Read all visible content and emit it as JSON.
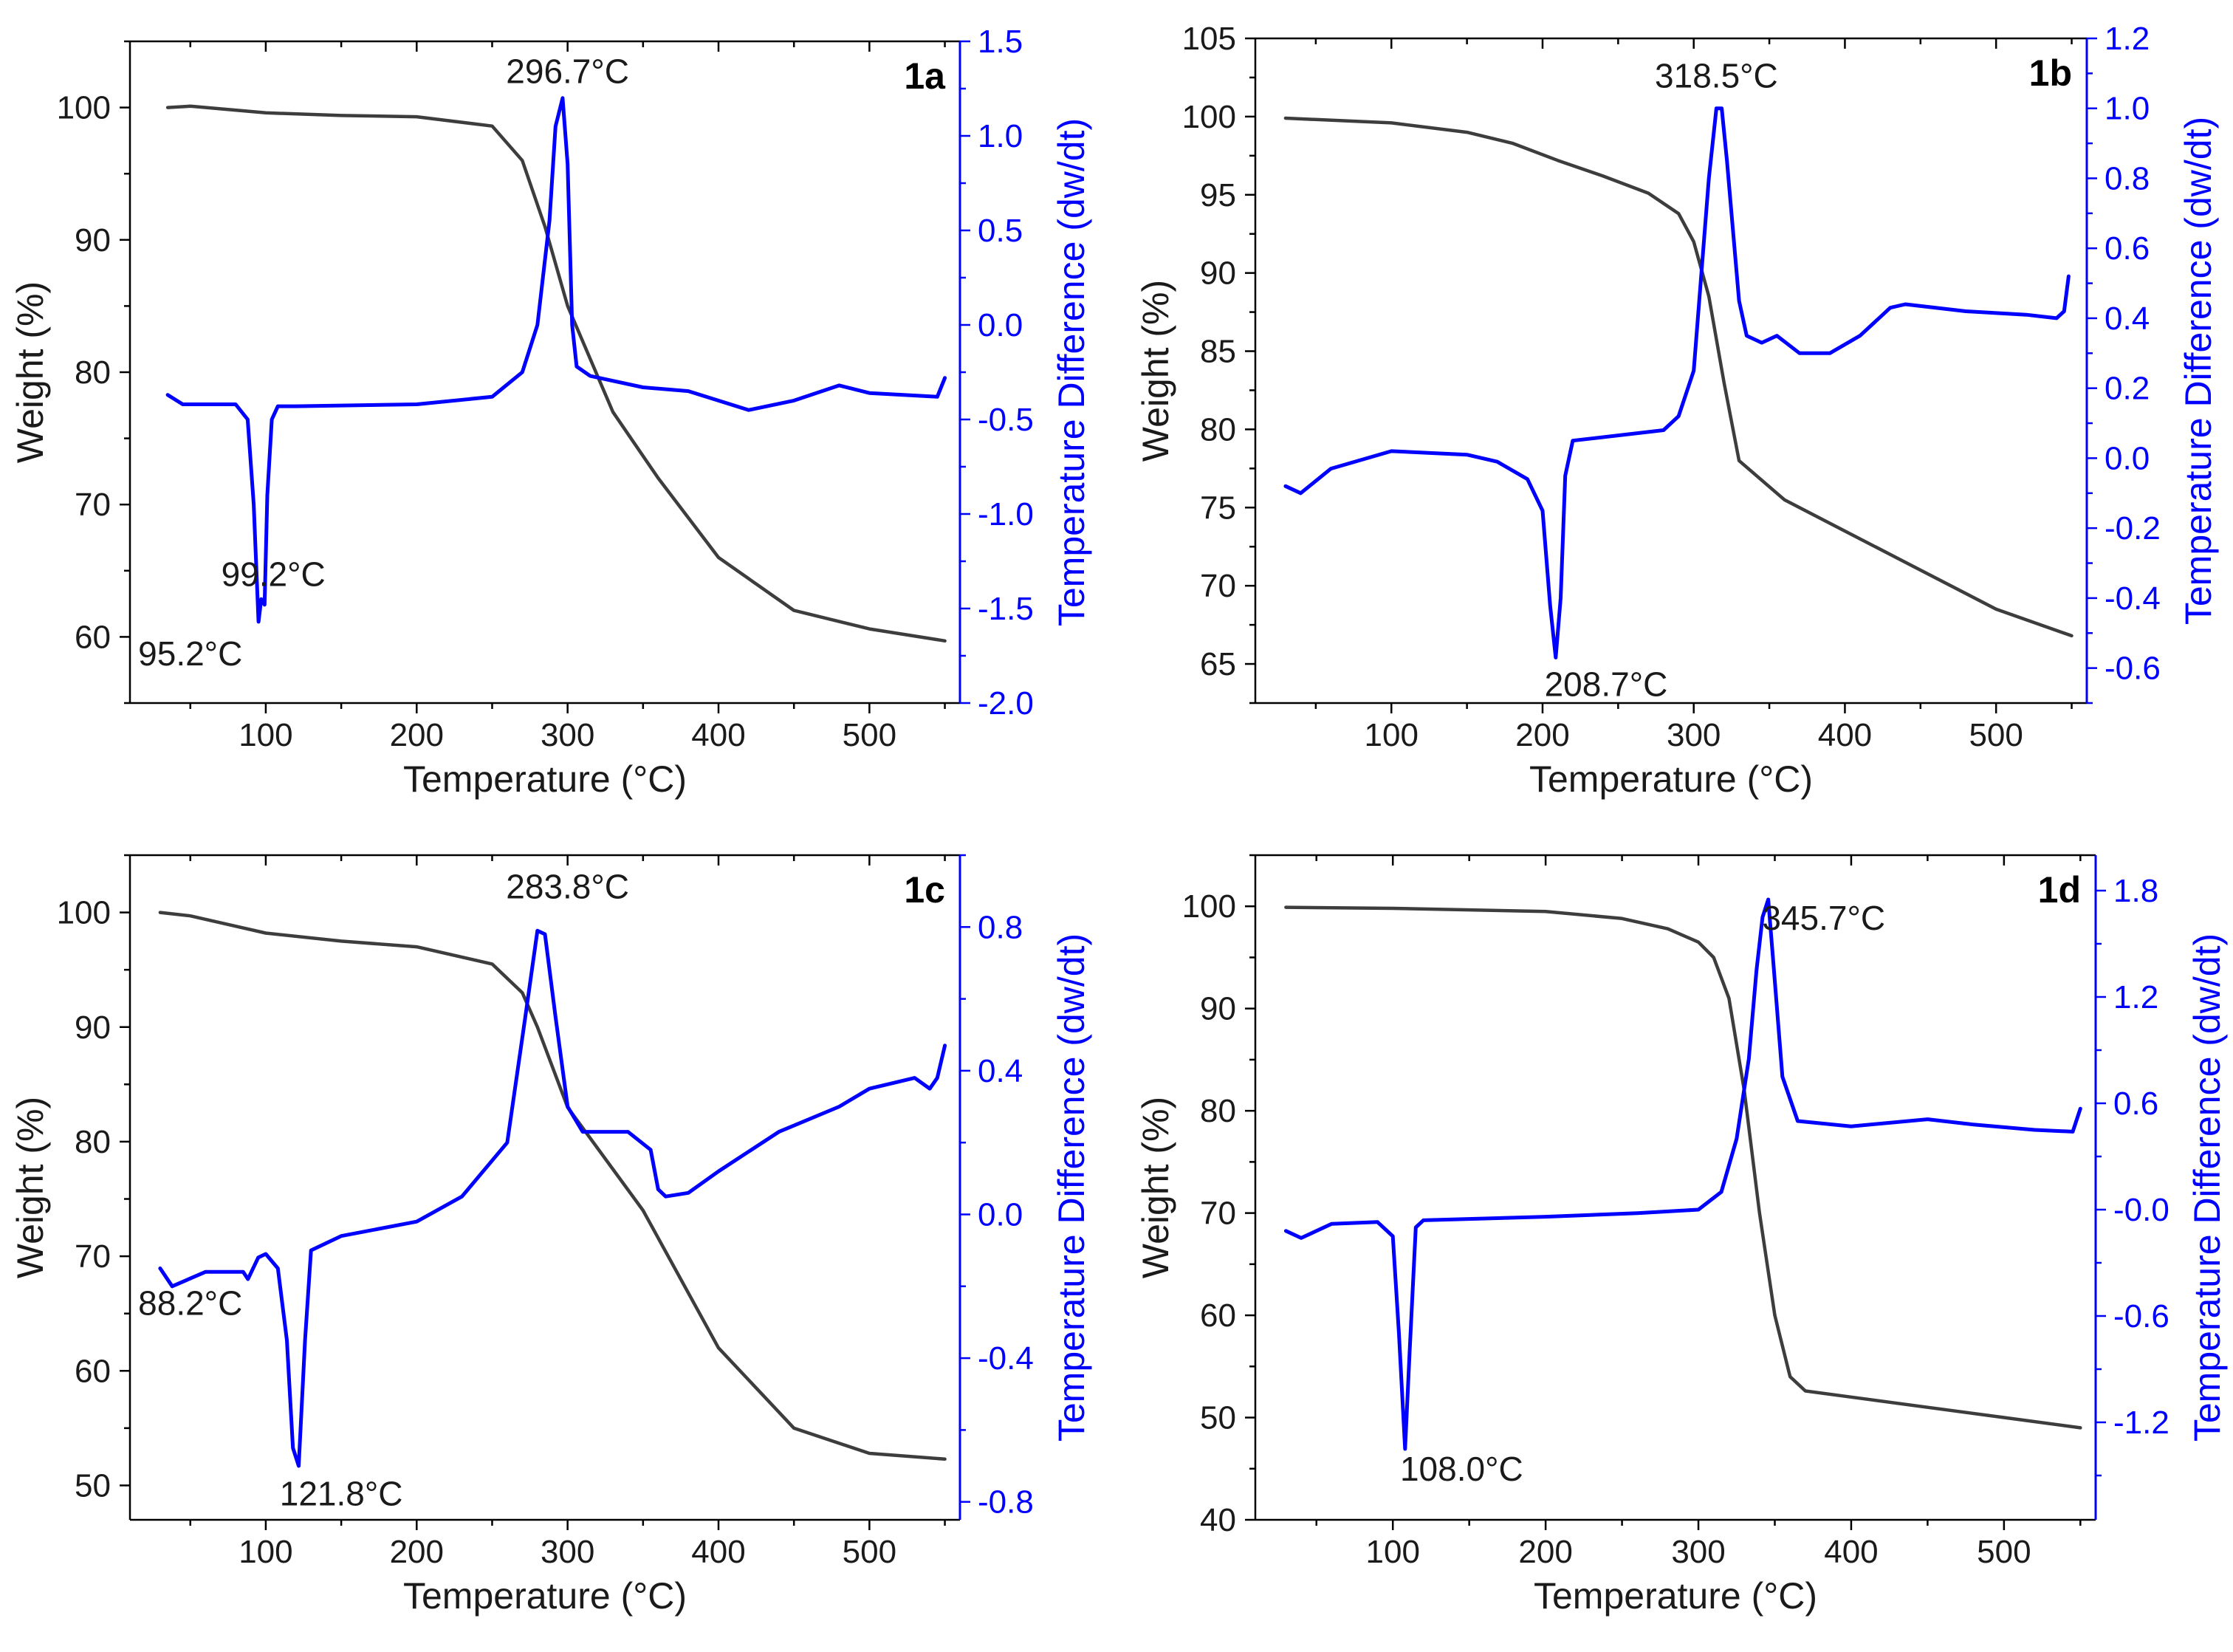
{
  "figure": {
    "panels": [
      {
        "id": "1a",
        "label": "1a",
        "chart_data": {
          "type": "line",
          "x_label": "Temperature (°C)",
          "y_label": "Weight (%)",
          "y2_label": "Temperature Difference (dw/dt)",
          "x_range": [
            10,
            560
          ],
          "y_range": [
            55,
            105
          ],
          "y2_range": [
            -2.0,
            1.5
          ],
          "x_ticks": [
            100,
            200,
            300,
            400,
            500
          ],
          "y_ticks": [
            60,
            70,
            80,
            90,
            100
          ],
          "y2_ticks": [
            -2.0,
            -1.5,
            -1.0,
            -0.5,
            0.0,
            0.5,
            1.0,
            1.5
          ],
          "y2_decimals": 1,
          "series": [
            {
              "name": "Weight",
              "axis": "y",
              "color": "#3d3d3d",
              "x": [
                35,
                50,
                100,
                150,
                200,
                250,
                270,
                285,
                300,
                330,
                360,
                400,
                450,
                500,
                550
              ],
              "y": [
                100,
                100.1,
                99.6,
                99.4,
                99.3,
                98.6,
                96,
                91,
                85,
                77,
                72,
                66,
                62,
                60.6,
                59.7
              ]
            },
            {
              "name": "Temperature Difference",
              "axis": "y2",
              "color": "#0000ff",
              "x": [
                35,
                45,
                80,
                88,
                92,
                95.2,
                97,
                99.2,
                101,
                104,
                108,
                120,
                200,
                250,
                270,
                280,
                288,
                292,
                296.7,
                300,
                303,
                306,
                315,
                350,
                380,
                420,
                450,
                480,
                500,
                545,
                550
              ],
              "y": [
                -0.37,
                -0.42,
                -0.42,
                -0.5,
                -0.95,
                -1.57,
                -1.45,
                -1.48,
                -0.9,
                -0.5,
                -0.43,
                -0.43,
                -0.42,
                -0.38,
                -0.25,
                0.0,
                0.55,
                1.05,
                1.2,
                0.85,
                0.0,
                -0.22,
                -0.27,
                -0.33,
                -0.35,
                -0.45,
                -0.4,
                -0.32,
                -0.36,
                -0.38,
                -0.28
              ]
            }
          ],
          "annotations": [
            {
              "text": "296.7°C",
              "x": 300,
              "y2": 1.28
            },
            {
              "text": "99.2°C",
              "x": 105,
              "y2": -1.38
            },
            {
              "text": "95.2°C",
              "x": 50,
              "y2": -1.8
            }
          ]
        }
      },
      {
        "id": "1b",
        "label": "1b",
        "chart_data": {
          "type": "line",
          "x_label": "Temperature (°C)",
          "y_label": "Weight (%)",
          "y2_label": "Temperature Difference (dw/dt)",
          "x_range": [
            10,
            560
          ],
          "y_range": [
            62.5,
            105
          ],
          "y2_range": [
            -0.7,
            1.2
          ],
          "x_ticks": [
            100,
            200,
            300,
            400,
            500
          ],
          "y_ticks": [
            65,
            70,
            75,
            80,
            85,
            90,
            95,
            100,
            105
          ],
          "y2_ticks": [
            -0.6,
            -0.4,
            -0.2,
            0.0,
            0.2,
            0.4,
            0.6,
            0.8,
            1.0,
            1.2
          ],
          "y2_decimals": 1,
          "series": [
            {
              "name": "Weight",
              "axis": "y",
              "color": "#3d3d3d",
              "x": [
                30,
                100,
                150,
                180,
                210,
                240,
                270,
                290,
                300,
                310,
                320,
                330,
                360,
                400,
                450,
                500,
                550
              ],
              "y": [
                99.9,
                99.6,
                99,
                98.3,
                97.2,
                96.2,
                95.1,
                93.8,
                92,
                88.5,
                83,
                78,
                75.5,
                73.5,
                71,
                68.5,
                66.8
              ]
            },
            {
              "name": "Temperature Difference",
              "axis": "y2",
              "color": "#0000ff",
              "x": [
                30,
                40,
                60,
                100,
                150,
                170,
                190,
                200,
                205,
                208.7,
                212,
                215,
                220,
                280,
                290,
                300,
                310,
                315,
                318.5,
                322,
                330,
                335,
                345,
                355,
                370,
                390,
                410,
                430,
                440,
                480,
                520,
                540,
                545,
                548
              ],
              "y": [
                -0.08,
                -0.1,
                -0.03,
                0.02,
                0.01,
                -0.01,
                -0.06,
                -0.15,
                -0.42,
                -0.57,
                -0.4,
                -0.05,
                0.05,
                0.08,
                0.12,
                0.25,
                0.8,
                1.0,
                1.0,
                0.85,
                0.45,
                0.35,
                0.33,
                0.35,
                0.3,
                0.3,
                0.35,
                0.43,
                0.44,
                0.42,
                0.41,
                0.4,
                0.42,
                0.52
              ]
            }
          ],
          "annotations": [
            {
              "text": "318.5°C",
              "x": 315,
              "y2": 1.06
            },
            {
              "text": "208.7°C",
              "x": 242,
              "y2": -0.68
            }
          ]
        }
      },
      {
        "id": "1c",
        "label": "1c",
        "chart_data": {
          "type": "line",
          "x_label": "Temperature (°C)",
          "y_label": "Weight (%)",
          "y2_label": "Temperature Difference (dw/dt)",
          "x_range": [
            10,
            560
          ],
          "y_range": [
            47,
            105
          ],
          "y2_range": [
            -0.85,
            1.0
          ],
          "x_ticks": [
            100,
            200,
            300,
            400,
            500
          ],
          "y_ticks": [
            50,
            60,
            70,
            80,
            90,
            100
          ],
          "y2_ticks": [
            -0.8,
            -0.4,
            0.0,
            0.4,
            0.8
          ],
          "y2_decimals": 1,
          "series": [
            {
              "name": "Weight",
              "axis": "y",
              "color": "#3d3d3d",
              "x": [
                30,
                50,
                80,
                100,
                150,
                200,
                250,
                270,
                280,
                300,
                350,
                400,
                450,
                500,
                550
              ],
              "y": [
                100,
                99.7,
                98.8,
                98.2,
                97.5,
                97,
                95.5,
                93,
                90,
                83,
                74,
                62,
                55,
                52.8,
                52.3
              ]
            },
            {
              "name": "Temperature Difference",
              "axis": "y2",
              "color": "#0000ff",
              "x": [
                30,
                38,
                60,
                85,
                88.2,
                95,
                100,
                108,
                114,
                118,
                121.8,
                126,
                130,
                150,
                200,
                230,
                260,
                272,
                280,
                285,
                292,
                300,
                310,
                340,
                355,
                360,
                365,
                380,
                400,
                440,
                480,
                500,
                530,
                540,
                545,
                550
              ],
              "y": [
                -0.15,
                -0.2,
                -0.16,
                -0.16,
                -0.18,
                -0.12,
                -0.11,
                -0.15,
                -0.35,
                -0.65,
                -0.7,
                -0.35,
                -0.1,
                -0.06,
                -0.02,
                0.05,
                0.2,
                0.55,
                0.79,
                0.78,
                0.55,
                0.3,
                0.23,
                0.23,
                0.18,
                0.07,
                0.05,
                0.06,
                0.12,
                0.23,
                0.3,
                0.35,
                0.38,
                0.35,
                0.38,
                0.47
              ]
            }
          ],
          "annotations": [
            {
              "text": "283.8°C",
              "x": 300,
              "y2": 0.88
            },
            {
              "text": "88.2°C",
              "x": 50,
              "y2": -0.28
            },
            {
              "text": "121.8°C",
              "x": 150,
              "y2": -0.81
            }
          ]
        }
      },
      {
        "id": "1d",
        "label": "1d",
        "chart_data": {
          "type": "line",
          "x_label": "Temperature (°C)",
          "y_label": "Weight (%)",
          "y2_label": "Temperature Difference (dw/dt)",
          "x_range": [
            10,
            560
          ],
          "y_range": [
            40,
            105
          ],
          "y2_range": [
            -1.75,
            2.0
          ],
          "x_ticks": [
            100,
            200,
            300,
            400,
            500
          ],
          "y_ticks": [
            40,
            50,
            60,
            70,
            80,
            90,
            100
          ],
          "y2_ticks": [
            -1.2,
            -0.6,
            0.0,
            0.6,
            1.2,
            1.8
          ],
          "y2_decimals": 1,
          "y2_tick_labels": [
            "-1.2",
            "-0.6",
            "-0.0",
            "0.6",
            "1.2",
            "1.8"
          ],
          "series": [
            {
              "name": "Weight",
              "axis": "y",
              "color": "#3d3d3d",
              "x": [
                30,
                100,
                200,
                250,
                280,
                300,
                310,
                320,
                330,
                340,
                350,
                360,
                370,
                400,
                450,
                500,
                550
              ],
              "y": [
                99.9,
                99.8,
                99.5,
                98.8,
                97.8,
                96.5,
                95,
                91,
                82,
                70,
                60,
                54,
                52.6,
                52,
                51,
                50,
                49
              ]
            },
            {
              "name": "Temperature Difference",
              "axis": "y2",
              "color": "#0000ff",
              "x": [
                30,
                40,
                60,
                90,
                100,
                104,
                108,
                111,
                115,
                120,
                200,
                260,
                300,
                315,
                325,
                333,
                338,
                342,
                345.7,
                349,
                355,
                365,
                400,
                450,
                480,
                520,
                545,
                550
              ],
              "y": [
                -0.12,
                -0.16,
                -0.08,
                -0.07,
                -0.15,
                -0.7,
                -1.35,
                -0.8,
                -0.1,
                -0.06,
                -0.04,
                -0.02,
                0.0,
                0.1,
                0.4,
                0.85,
                1.35,
                1.65,
                1.75,
                1.4,
                0.75,
                0.5,
                0.47,
                0.51,
                0.48,
                0.45,
                0.44,
                0.57
              ]
            }
          ],
          "annotations": [
            {
              "text": "345.7°C",
              "x": 382,
              "y2": 1.58
            },
            {
              "text": "108.0°C",
              "x": 145,
              "y2": -1.53
            }
          ]
        }
      }
    ]
  }
}
